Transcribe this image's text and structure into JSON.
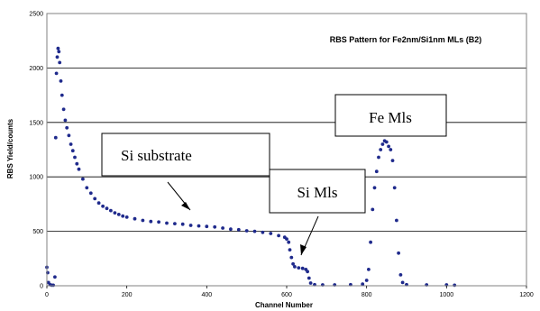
{
  "chart_data": {
    "type": "scatter",
    "title": "RBS Pattern for Fe2nm/Si1nm  MLs  (B2)",
    "xlabel": "Channel Number",
    "ylabel": "RBS Yield/counts",
    "xlim": [
      0,
      1200
    ],
    "ylim": [
      0,
      2500
    ],
    "xticks": [
      0,
      200,
      400,
      600,
      800,
      1000,
      1200
    ],
    "yticks": [
      0,
      500,
      1000,
      1500,
      2000,
      2500
    ],
    "grid": "horizontal",
    "legend": "none",
    "marker_color": "#1f2a8c",
    "series": [
      {
        "points": [
          [
            0,
            170
          ],
          [
            2,
            120
          ],
          [
            4,
            30
          ],
          [
            8,
            10
          ],
          [
            12,
            5
          ],
          [
            16,
            5
          ],
          [
            20,
            80
          ],
          [
            22,
            1360
          ],
          [
            24,
            1950
          ],
          [
            26,
            2100
          ],
          [
            28,
            2180
          ],
          [
            30,
            2150
          ],
          [
            32,
            2050
          ],
          [
            35,
            1880
          ],
          [
            38,
            1750
          ],
          [
            42,
            1620
          ],
          [
            46,
            1520
          ],
          [
            50,
            1450
          ],
          [
            55,
            1380
          ],
          [
            60,
            1300
          ],
          [
            65,
            1240
          ],
          [
            70,
            1180
          ],
          [
            75,
            1120
          ],
          [
            80,
            1070
          ],
          [
            90,
            980
          ],
          [
            100,
            900
          ],
          [
            110,
            850
          ],
          [
            120,
            800
          ],
          [
            130,
            760
          ],
          [
            140,
            730
          ],
          [
            150,
            710
          ],
          [
            160,
            690
          ],
          [
            170,
            670
          ],
          [
            180,
            655
          ],
          [
            190,
            640
          ],
          [
            200,
            630
          ],
          [
            220,
            615
          ],
          [
            240,
            600
          ],
          [
            260,
            590
          ],
          [
            280,
            585
          ],
          [
            300,
            575
          ],
          [
            320,
            570
          ],
          [
            340,
            565
          ],
          [
            360,
            555
          ],
          [
            380,
            550
          ],
          [
            400,
            545
          ],
          [
            420,
            540
          ],
          [
            440,
            530
          ],
          [
            460,
            520
          ],
          [
            480,
            515
          ],
          [
            500,
            505
          ],
          [
            520,
            500
          ],
          [
            540,
            490
          ],
          [
            560,
            480
          ],
          [
            580,
            460
          ],
          [
            595,
            445
          ],
          [
            600,
            430
          ],
          [
            605,
            400
          ],
          [
            608,
            330
          ],
          [
            612,
            260
          ],
          [
            616,
            200
          ],
          [
            620,
            175
          ],
          [
            630,
            165
          ],
          [
            640,
            160
          ],
          [
            648,
            150
          ],
          [
            652,
            130
          ],
          [
            656,
            70
          ],
          [
            660,
            25
          ],
          [
            670,
            10
          ],
          [
            690,
            8
          ],
          [
            720,
            8
          ],
          [
            760,
            10
          ],
          [
            790,
            15
          ],
          [
            800,
            50
          ],
          [
            805,
            150
          ],
          [
            810,
            400
          ],
          [
            815,
            700
          ],
          [
            820,
            900
          ],
          [
            825,
            1050
          ],
          [
            830,
            1180
          ],
          [
            835,
            1250
          ],
          [
            840,
            1300
          ],
          [
            845,
            1330
          ],
          [
            850,
            1320
          ],
          [
            855,
            1280
          ],
          [
            860,
            1250
          ],
          [
            865,
            1150
          ],
          [
            870,
            900
          ],
          [
            875,
            600
          ],
          [
            880,
            300
          ],
          [
            885,
            100
          ],
          [
            890,
            30
          ],
          [
            900,
            10
          ],
          [
            950,
            8
          ],
          [
            1000,
            8
          ],
          [
            1020,
            5
          ]
        ]
      }
    ],
    "annotations": [
      {
        "text": "Fe Mls"
      },
      {
        "text": "Si  substrate"
      },
      {
        "text": "Si Mls"
      }
    ]
  }
}
